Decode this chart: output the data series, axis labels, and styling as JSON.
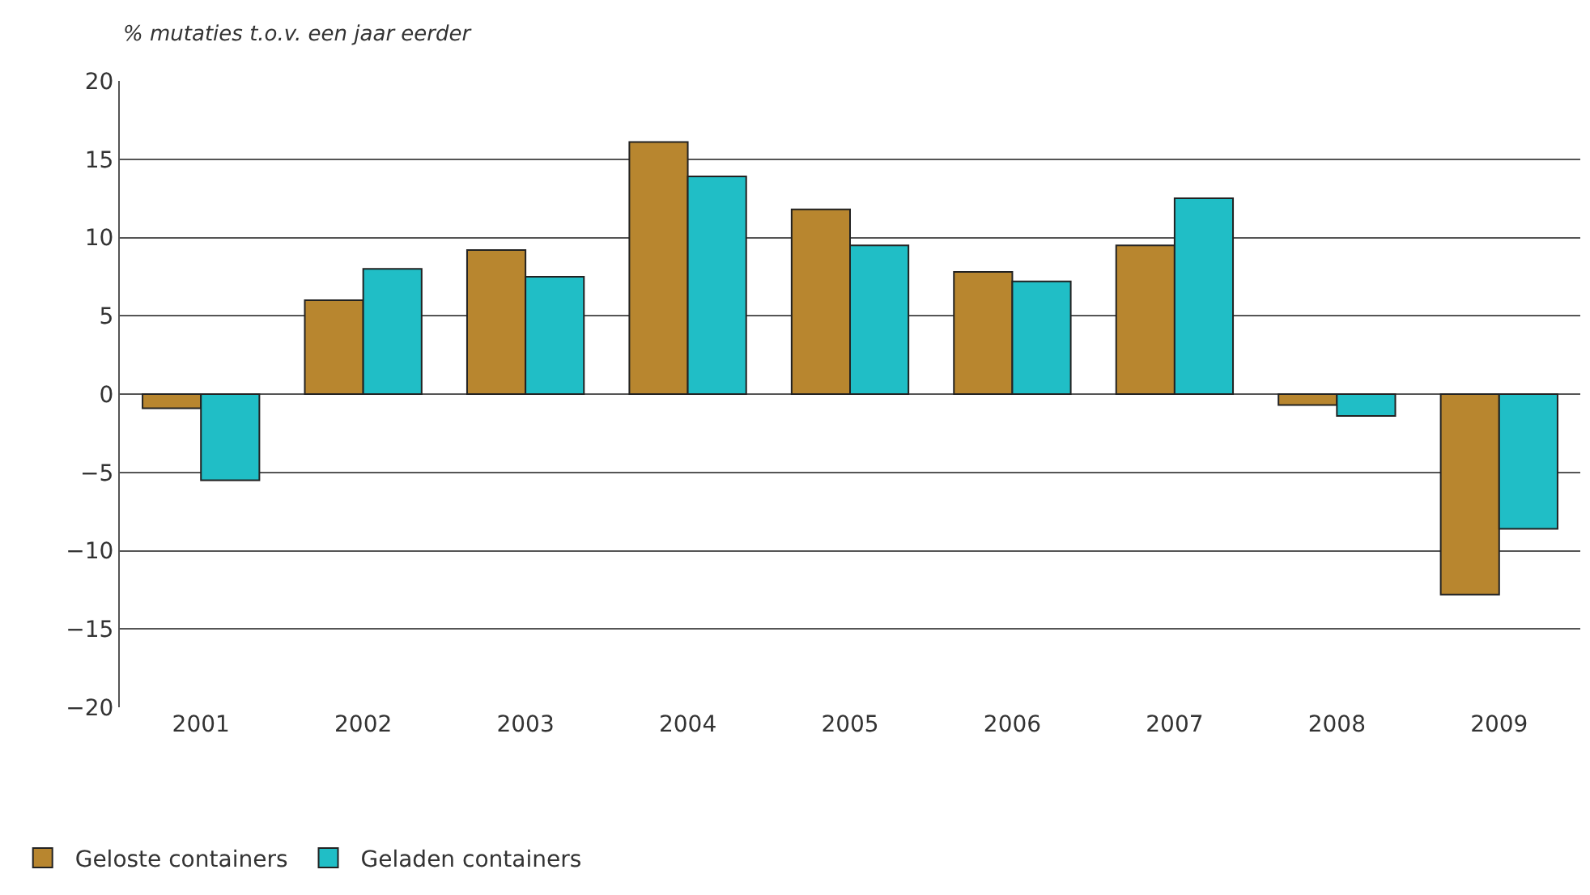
{
  "chart_data": {
    "type": "bar",
    "ylabel": "% mutaties t.o.v. een jaar eerder",
    "categories": [
      "2001",
      "2002",
      "2003",
      "2004",
      "2005",
      "2006",
      "2007",
      "2008",
      "2009"
    ],
    "series": [
      {
        "name": "Geloste containers",
        "color": "#b8862f",
        "values": [
          -0.9,
          6.0,
          9.2,
          16.1,
          11.8,
          7.8,
          9.5,
          -0.7,
          -12.8
        ]
      },
      {
        "name": "Geladen containers",
        "color": "#20bec6",
        "values": [
          -5.5,
          8.0,
          7.5,
          13.9,
          9.5,
          7.2,
          12.5,
          -1.4,
          -8.6
        ]
      }
    ],
    "ylim": [
      -20,
      20
    ],
    "yticks": [
      {
        "value": -20,
        "label": "−20"
      },
      {
        "value": -15,
        "label": "−15"
      },
      {
        "value": -10,
        "label": "−10"
      },
      {
        "value": -5,
        "label": "−5"
      },
      0,
      5,
      10,
      15,
      20
    ],
    "grid": "y",
    "legend": "bottom left"
  }
}
